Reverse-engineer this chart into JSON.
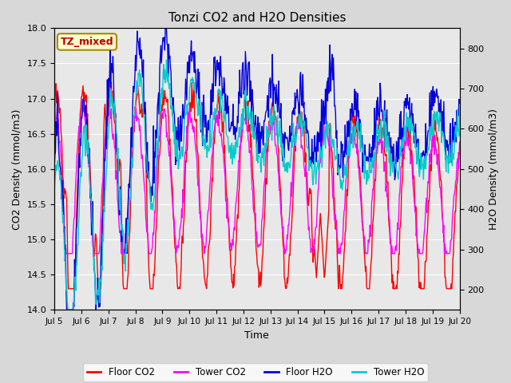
{
  "title": "Tonzi CO2 and H2O Densities",
  "xlabel": "Time",
  "ylabel_left": "CO2 Density (mmol/m3)",
  "ylabel_right": "H2O Density (mmol/m3)",
  "annotation": "TZ_mixed",
  "annotation_color": "#bb0000",
  "annotation_bg": "#ffffcc",
  "annotation_border": "#aa8800",
  "ylim_left": [
    14.0,
    18.0
  ],
  "ylim_right": [
    150,
    850
  ],
  "colors": {
    "floor_co2": "#ff0000",
    "tower_co2": "#ff00ff",
    "floor_h2o": "#0000dd",
    "tower_h2o": "#00cccc"
  },
  "legend_labels": [
    "Floor CO2",
    "Tower CO2",
    "Floor H2O",
    "Tower H2O"
  ],
  "xtick_labels": [
    "Jul 5",
    "Jul 6",
    "Jul 7",
    "Jul 8",
    "Jul 9",
    "Jul 10",
    "Jul 11",
    "Jul 12",
    "Jul 13",
    "Jul 14",
    "Jul 15",
    "Jul 16",
    "Jul 17",
    "Jul 18",
    "Jul 19",
    "Jul 20"
  ],
  "background_color": "#d8d8d8",
  "plot_bg": "#e8e8e8",
  "grid_color": "#ffffff",
  "seed": 42,
  "n_points": 720
}
